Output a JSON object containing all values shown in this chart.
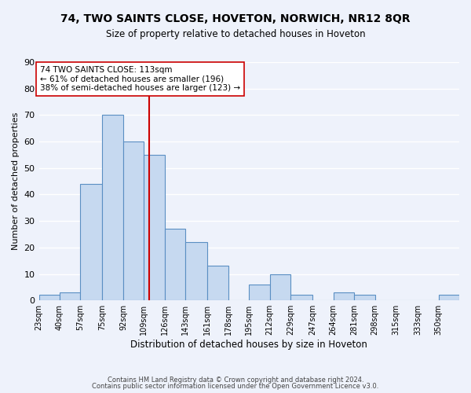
{
  "title": "74, TWO SAINTS CLOSE, HOVETON, NORWICH, NR12 8QR",
  "subtitle": "Size of property relative to detached houses in Hoveton",
  "xlabel": "Distribution of detached houses by size in Hoveton",
  "ylabel": "Number of detached properties",
  "bin_edges": [
    23,
    40,
    57,
    75,
    92,
    109,
    126,
    143,
    161,
    178,
    195,
    212,
    229,
    247,
    264,
    281,
    298,
    315,
    333,
    350,
    367
  ],
  "counts": [
    2,
    3,
    44,
    70,
    60,
    55,
    27,
    22,
    13,
    0,
    6,
    10,
    2,
    0,
    3,
    2,
    0,
    0,
    0,
    2
  ],
  "bar_color": "#c6d9f0",
  "bar_edge_color": "#5a8fc3",
  "vline_x": 113,
  "vline_color": "#cc0000",
  "annotation_title": "74 TWO SAINTS CLOSE: 113sqm",
  "annotation_line1": "← 61% of detached houses are smaller (196)",
  "annotation_line2": "38% of semi-detached houses are larger (123) →",
  "annotation_box_color": "#ffffff",
  "annotation_box_edge": "#cc0000",
  "ylim": [
    0,
    90
  ],
  "footer1": "Contains HM Land Registry data © Crown copyright and database right 2024.",
  "footer2": "Contains public sector information licensed under the Open Government Licence v3.0.",
  "background_color": "#eef2fb",
  "grid_color": "#ffffff"
}
